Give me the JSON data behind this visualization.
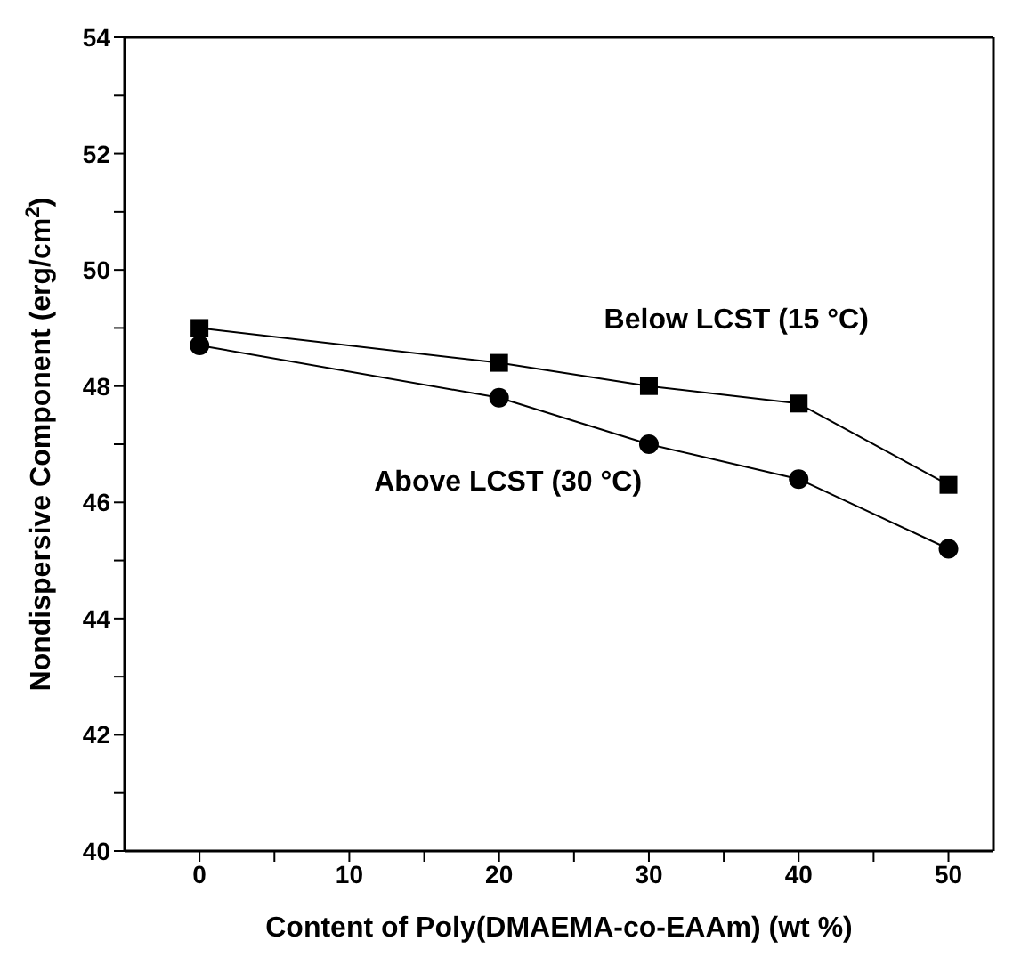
{
  "chart_data": {
    "type": "line",
    "xlabel": "Content of Poly(DMAEMA-co-EAAm) (wt %)",
    "ylabel": "Nondispersive Component (erg/cm$^{2}$)",
    "x": [
      0,
      20,
      30,
      40,
      50
    ],
    "series": [
      {
        "name": "Below LCST (15 °C)",
        "color": "#000000",
        "marker": "square",
        "values": [
          49.0,
          48.4,
          48.0,
          47.7,
          46.3
        ]
      },
      {
        "name": "Above LCST (30 °C)",
        "color": "#000000",
        "marker": "circle",
        "values": [
          48.7,
          47.8,
          47.0,
          46.4,
          45.2
        ]
      }
    ],
    "xlim": [
      -5,
      53
    ],
    "xticks": [
      0,
      {
        "value": 5,
        "label": null
      },
      10,
      {
        "value": 15,
        "label": null
      },
      20,
      {
        "value": 25,
        "label": null
      },
      30,
      {
        "value": 35,
        "label": null
      },
      40,
      {
        "value": 45,
        "label": null
      },
      50
    ],
    "ylim": [
      40,
      54
    ],
    "yticks": [
      40,
      {
        "value": 41,
        "label": null
      },
      42,
      {
        "value": 43,
        "label": null
      },
      44,
      {
        "value": 45,
        "label": null
      },
      46,
      {
        "value": 47,
        "label": null
      },
      48,
      {
        "value": 49,
        "label": null
      },
      50,
      {
        "value": 51,
        "label": null
      },
      52,
      {
        "value": 53,
        "label": null
      },
      54
    ],
    "grid": false,
    "legend": false,
    "line_style": "solid"
  }
}
